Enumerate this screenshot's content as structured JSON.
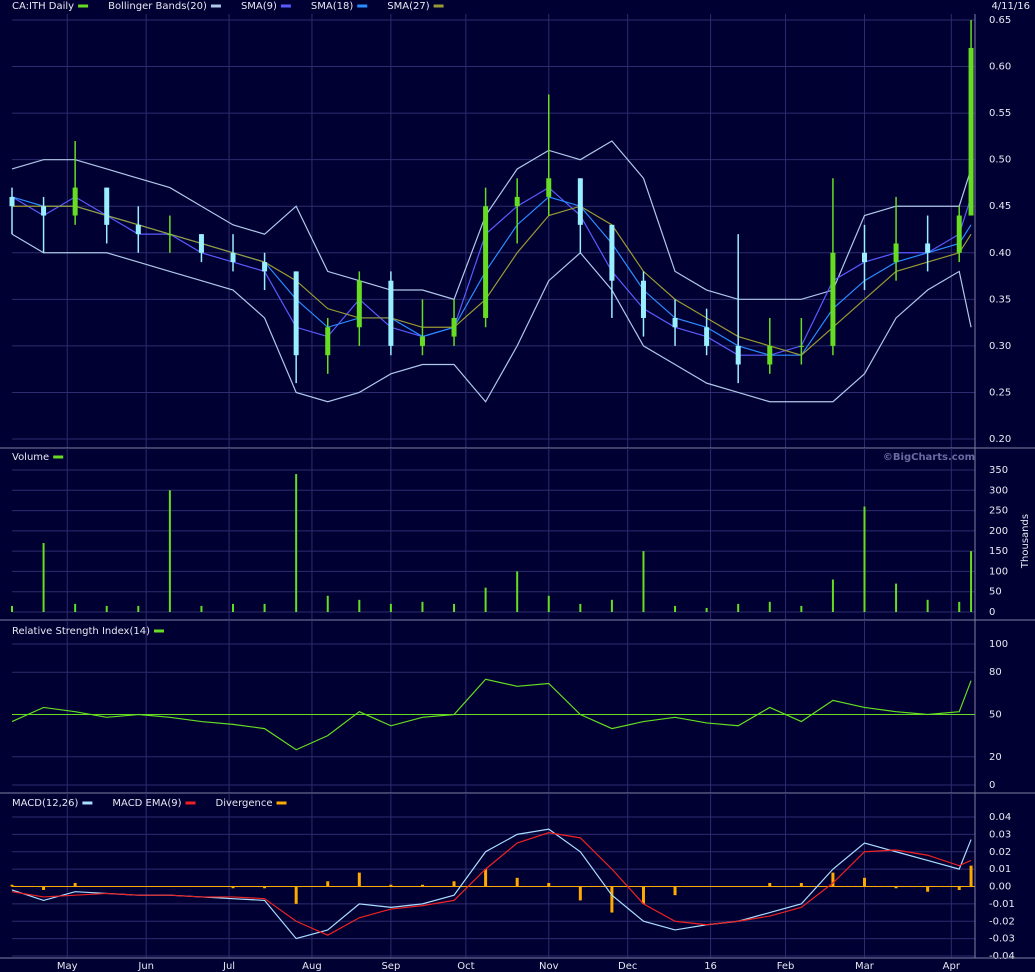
{
  "chart_data": [
    {
      "type": "candlestick",
      "title": "CA:ITH Daily",
      "date": "4/11/16",
      "up_color": "#66dd22",
      "down_color": "#99eeff",
      "x": [
        0,
        8,
        16,
        24,
        32,
        40,
        48,
        56,
        64,
        72,
        80,
        88,
        96,
        104,
        112,
        120,
        128,
        136,
        144,
        152,
        160,
        168,
        176,
        184,
        192,
        200,
        208,
        216,
        224,
        232,
        240,
        243
      ],
      "open": [
        0.46,
        0.45,
        0.44,
        0.47,
        0.43,
        0.42,
        0.42,
        0.4,
        0.39,
        0.38,
        0.29,
        0.32,
        0.37,
        0.3,
        0.31,
        0.33,
        0.45,
        0.46,
        0.48,
        0.43,
        0.37,
        0.33,
        0.32,
        0.3,
        0.28,
        0.3,
        0.3,
        0.4,
        0.39,
        0.41,
        0.4,
        0.44
      ],
      "high": [
        0.47,
        0.46,
        0.52,
        0.47,
        0.45,
        0.44,
        0.42,
        0.42,
        0.4,
        0.38,
        0.33,
        0.38,
        0.38,
        0.35,
        0.35,
        0.47,
        0.48,
        0.57,
        0.48,
        0.43,
        0.38,
        0.35,
        0.34,
        0.42,
        0.33,
        0.33,
        0.48,
        0.43,
        0.46,
        0.44,
        0.45,
        0.65
      ],
      "low": [
        0.42,
        0.4,
        0.43,
        0.41,
        0.4,
        0.4,
        0.39,
        0.38,
        0.36,
        0.26,
        0.27,
        0.3,
        0.29,
        0.29,
        0.3,
        0.32,
        0.41,
        0.44,
        0.4,
        0.33,
        0.31,
        0.3,
        0.29,
        0.26,
        0.27,
        0.28,
        0.29,
        0.36,
        0.37,
        0.38,
        0.39,
        0.44
      ],
      "close": [
        0.45,
        0.44,
        0.47,
        0.43,
        0.42,
        0.42,
        0.4,
        0.39,
        0.38,
        0.29,
        0.32,
        0.37,
        0.3,
        0.31,
        0.33,
        0.45,
        0.46,
        0.48,
        0.43,
        0.37,
        0.33,
        0.32,
        0.3,
        0.28,
        0.3,
        0.3,
        0.4,
        0.39,
        0.41,
        0.4,
        0.44,
        0.62
      ],
      "series": [
        {
          "name": "Bollinger Bands(20)",
          "color": "#b0c8e8",
          "values": [
            0.49,
            0.5,
            0.5,
            0.49,
            0.48,
            0.47,
            0.45,
            0.43,
            0.42,
            0.45,
            0.38,
            0.37,
            0.36,
            0.36,
            0.35,
            0.44,
            0.49,
            0.51,
            0.5,
            0.52,
            0.48,
            0.38,
            0.36,
            0.35,
            0.35,
            0.35,
            0.36,
            0.44,
            0.45,
            0.45,
            0.45,
            0.49
          ],
          "lower": [
            0.42,
            0.4,
            0.4,
            0.4,
            0.39,
            0.38,
            0.37,
            0.36,
            0.33,
            0.25,
            0.24,
            0.25,
            0.27,
            0.28,
            0.28,
            0.24,
            0.3,
            0.37,
            0.4,
            0.36,
            0.3,
            0.28,
            0.26,
            0.25,
            0.24,
            0.24,
            0.24,
            0.27,
            0.33,
            0.36,
            0.38,
            0.32
          ]
        },
        {
          "name": "SMA(9)",
          "color": "#5a5aff",
          "values": [
            0.46,
            0.44,
            0.46,
            0.44,
            0.42,
            0.42,
            0.4,
            0.39,
            0.38,
            0.32,
            0.31,
            0.35,
            0.32,
            0.31,
            0.32,
            0.42,
            0.45,
            0.47,
            0.44,
            0.38,
            0.34,
            0.32,
            0.31,
            0.29,
            0.29,
            0.3,
            0.37,
            0.39,
            0.4,
            0.4,
            0.42,
            0.46
          ]
        },
        {
          "name": "SMA(18)",
          "color": "#2a8cff",
          "values": [
            0.46,
            0.45,
            0.45,
            0.44,
            0.43,
            0.42,
            0.41,
            0.4,
            0.39,
            0.35,
            0.32,
            0.33,
            0.33,
            0.31,
            0.32,
            0.38,
            0.43,
            0.46,
            0.45,
            0.41,
            0.36,
            0.33,
            0.32,
            0.3,
            0.29,
            0.29,
            0.34,
            0.37,
            0.39,
            0.4,
            0.41,
            0.43
          ]
        },
        {
          "name": "SMA(27)",
          "color": "#9a9a33",
          "values": [
            0.45,
            0.45,
            0.45,
            0.44,
            0.43,
            0.42,
            0.41,
            0.4,
            0.39,
            0.37,
            0.34,
            0.33,
            0.33,
            0.32,
            0.32,
            0.35,
            0.4,
            0.44,
            0.45,
            0.43,
            0.38,
            0.35,
            0.33,
            0.31,
            0.3,
            0.29,
            0.32,
            0.35,
            0.38,
            0.39,
            0.4,
            0.42
          ]
        }
      ],
      "xlim": [
        0,
        244
      ],
      "xticks": [
        {
          "value": 14,
          "label": "May"
        },
        {
          "value": 34,
          "label": "Jun"
        },
        {
          "value": 55,
          "label": "Jul"
        },
        {
          "value": 76,
          "label": "Aug"
        },
        {
          "value": 96,
          "label": "Sep"
        },
        {
          "value": 115,
          "label": "Oct"
        },
        {
          "value": 136,
          "label": "Nov"
        },
        {
          "value": 156,
          "label": "Dec"
        },
        {
          "value": 177,
          "label": "16"
        },
        {
          "value": 196,
          "label": "Feb"
        },
        {
          "value": 216,
          "label": "Mar"
        },
        {
          "value": 238,
          "label": "Apr"
        }
      ],
      "ylim": [
        0.2,
        0.65
      ],
      "yticks": [
        {
          "value": 0.2,
          "label": "0.20"
        },
        0.25,
        {
          "value": 0.3,
          "label": "0.30"
        },
        0.35,
        {
          "value": 0.4,
          "label": "0.40"
        },
        0.45,
        {
          "value": 0.5,
          "label": "0.50"
        },
        0.55,
        {
          "value": 0.6,
          "label": "0.60"
        },
        0.65
      ],
      "grid": true
    },
    {
      "type": "bar",
      "title": "Volume",
      "color": "#66dd22",
      "credit": "©BigCharts.com",
      "y_label": "Thousands",
      "x": [
        0,
        8,
        16,
        24,
        32,
        40,
        48,
        56,
        64,
        72,
        80,
        88,
        96,
        104,
        112,
        120,
        128,
        136,
        144,
        152,
        160,
        168,
        176,
        184,
        192,
        200,
        208,
        216,
        224,
        232,
        240,
        243
      ],
      "values": [
        15,
        170,
        20,
        15,
        15,
        300,
        15,
        20,
        20,
        340,
        40,
        30,
        20,
        25,
        20,
        60,
        100,
        40,
        20,
        30,
        150,
        15,
        10,
        20,
        25,
        15,
        80,
        260,
        70,
        30,
        25,
        150
      ],
      "ylim": [
        0,
        350
      ],
      "yticks": [
        0,
        50,
        100,
        150,
        200,
        250,
        300,
        350
      ],
      "grid": true
    },
    {
      "type": "line",
      "title": "Relative Strength Index(14)",
      "color": "#66dd22",
      "reference": 50,
      "x": [
        0,
        8,
        16,
        24,
        32,
        40,
        48,
        56,
        64,
        72,
        80,
        88,
        96,
        104,
        112,
        120,
        128,
        136,
        144,
        152,
        160,
        168,
        176,
        184,
        192,
        200,
        208,
        216,
        224,
        232,
        240,
        243
      ],
      "values": [
        45,
        55,
        52,
        48,
        50,
        48,
        45,
        43,
        40,
        25,
        35,
        52,
        42,
        48,
        50,
        75,
        70,
        72,
        50,
        40,
        45,
        48,
        44,
        42,
        55,
        45,
        60,
        55,
        52,
        50,
        52,
        74
      ],
      "ylim": [
        0,
        100
      ],
      "yticks": [
        0,
        20,
        50,
        80,
        100
      ],
      "grid": true
    },
    {
      "type": "macd",
      "x": [
        0,
        8,
        16,
        24,
        32,
        40,
        48,
        56,
        64,
        72,
        80,
        88,
        96,
        104,
        112,
        120,
        128,
        136,
        144,
        152,
        160,
        168,
        176,
        184,
        192,
        200,
        208,
        216,
        224,
        232,
        240,
        243
      ],
      "series": [
        {
          "name": "MACD(12,26)",
          "color": "#aaddff",
          "values": [
            -0.002,
            -0.008,
            -0.003,
            -0.004,
            -0.005,
            -0.005,
            -0.006,
            -0.007,
            -0.008,
            -0.03,
            -0.025,
            -0.01,
            -0.012,
            -0.01,
            -0.005,
            0.02,
            0.03,
            0.033,
            0.02,
            -0.005,
            -0.02,
            -0.025,
            -0.022,
            -0.02,
            -0.015,
            -0.01,
            0.01,
            0.025,
            0.02,
            0.015,
            0.01,
            0.027
          ]
        },
        {
          "name": "MACD EMA(9)",
          "color": "#ee2222",
          "values": [
            -0.003,
            -0.006,
            -0.005,
            -0.004,
            -0.005,
            -0.005,
            -0.006,
            -0.006,
            -0.007,
            -0.02,
            -0.028,
            -0.018,
            -0.013,
            -0.011,
            -0.008,
            0.01,
            0.025,
            0.031,
            0.028,
            0.01,
            -0.01,
            -0.02,
            -0.022,
            -0.02,
            -0.017,
            -0.012,
            0.002,
            0.02,
            0.021,
            0.018,
            0.012,
            0.015
          ]
        },
        {
          "name": "Divergence",
          "color": "#ffaa00",
          "style": "bar",
          "values": [
            0.001,
            -0.002,
            0.002,
            0,
            0,
            0,
            0,
            -0.001,
            -0.001,
            -0.01,
            0.003,
            0.008,
            0.001,
            0.001,
            0.003,
            0.01,
            0.005,
            0.002,
            -0.008,
            -0.015,
            -0.01,
            -0.005,
            0,
            0,
            0.002,
            0.002,
            0.008,
            0.005,
            -0.001,
            -0.003,
            -0.002,
            0.012
          ]
        }
      ],
      "ylim": [
        -0.04,
        0.04
      ],
      "yticks": [
        -0.04,
        -0.03,
        -0.02,
        -0.01,
        {
          "value": 0,
          "label": "0.00"
        },
        0.01,
        0.02,
        0.03,
        0.04
      ],
      "grid": true
    }
  ]
}
